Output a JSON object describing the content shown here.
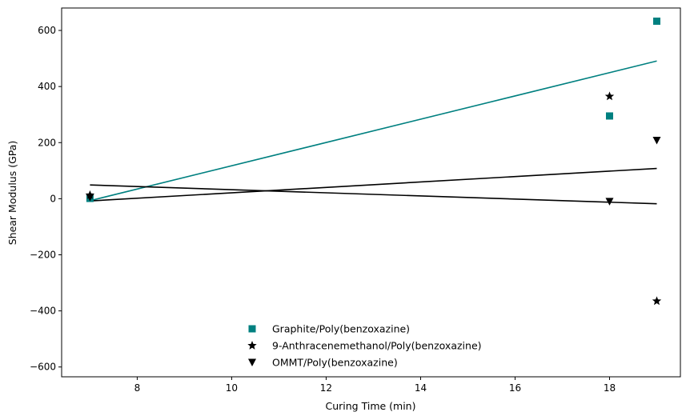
{
  "chart_data": {
    "type": "scatter",
    "title": "",
    "xlabel": "Curing Time (min)",
    "ylabel": "Shear Modulus (GPa)",
    "xlim": [
      6.4,
      19.5
    ],
    "ylim": [
      -635,
      680
    ],
    "xticks": [
      8,
      10,
      12,
      14,
      16,
      18
    ],
    "yticks": [
      -600,
      -400,
      -200,
      0,
      200,
      400,
      600
    ],
    "grid": false,
    "legend_position": "bottom-center",
    "series": [
      {
        "name": "Graphite/Poly(benzoxazine)",
        "marker": "square",
        "color": "#008080",
        "points": [
          {
            "x": 7,
            "y": 1
          },
          {
            "x": 18,
            "y": 295
          },
          {
            "x": 19,
            "y": 633
          }
        ],
        "fit_line": {
          "x": [
            7,
            19
          ],
          "y": [
            -7,
            491
          ]
        }
      },
      {
        "name": "9-Anthracenemethanol/Poly(benzoxazine)",
        "marker": "star",
        "color": "#000000",
        "points": [
          {
            "x": 7,
            "y": 13
          },
          {
            "x": 18,
            "y": 365
          },
          {
            "x": 19,
            "y": -365
          }
        ],
        "fit_line": {
          "x": [
            7,
            19
          ],
          "y": [
            49,
            -18
          ]
        }
      },
      {
        "name": "OMMT/Poly(benzoxazine)",
        "marker": "triangle-down",
        "color": "#000000",
        "points": [
          {
            "x": 7,
            "y": 5
          },
          {
            "x": 18,
            "y": -10
          },
          {
            "x": 19,
            "y": 208
          }
        ],
        "fit_line": {
          "x": [
            7,
            19
          ],
          "y": [
            -8,
            108
          ]
        }
      }
    ]
  }
}
